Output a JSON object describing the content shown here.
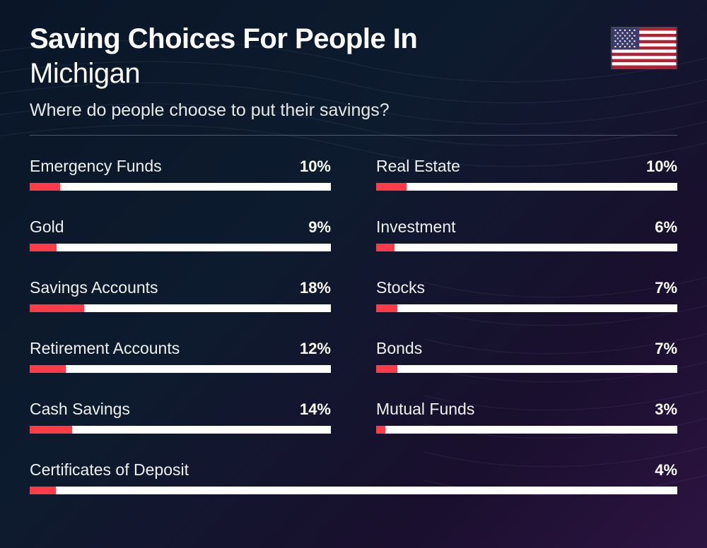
{
  "header": {
    "title_line1": "Saving Choices For People In",
    "title_line2": "Michigan",
    "subtitle": "Where do people choose to put their savings?"
  },
  "style": {
    "bar_track_color": "#ffffff",
    "bar_fill_color": "#ff3b47",
    "text_color": "#ffffff",
    "label_fontsize": 23,
    "value_fontsize": 22,
    "title_fontsize": 40,
    "subtitle_fontsize": 25
  },
  "flag": {
    "name": "us-flag",
    "stripe_red": "#b22234",
    "stripe_white": "#ffffff",
    "canton_blue": "#3c3b6e"
  },
  "items": [
    {
      "label": "Emergency Funds",
      "value": 10,
      "display": "10%",
      "col": 1
    },
    {
      "label": "Real Estate",
      "value": 10,
      "display": "10%",
      "col": 2
    },
    {
      "label": "Gold",
      "value": 9,
      "display": "9%",
      "col": 1
    },
    {
      "label": "Investment",
      "value": 6,
      "display": "6%",
      "col": 2
    },
    {
      "label": "Savings Accounts",
      "value": 18,
      "display": "18%",
      "col": 1
    },
    {
      "label": "Stocks",
      "value": 7,
      "display": "7%",
      "col": 2
    },
    {
      "label": "Retirement Accounts",
      "value": 12,
      "display": "12%",
      "col": 1
    },
    {
      "label": "Bonds",
      "value": 7,
      "display": "7%",
      "col": 2
    },
    {
      "label": "Cash Savings",
      "value": 14,
      "display": "14%",
      "col": 1
    },
    {
      "label": "Mutual Funds",
      "value": 3,
      "display": "3%",
      "col": 2
    },
    {
      "label": "Certificates of Deposit",
      "value": 4,
      "display": "4%",
      "full": true
    }
  ]
}
